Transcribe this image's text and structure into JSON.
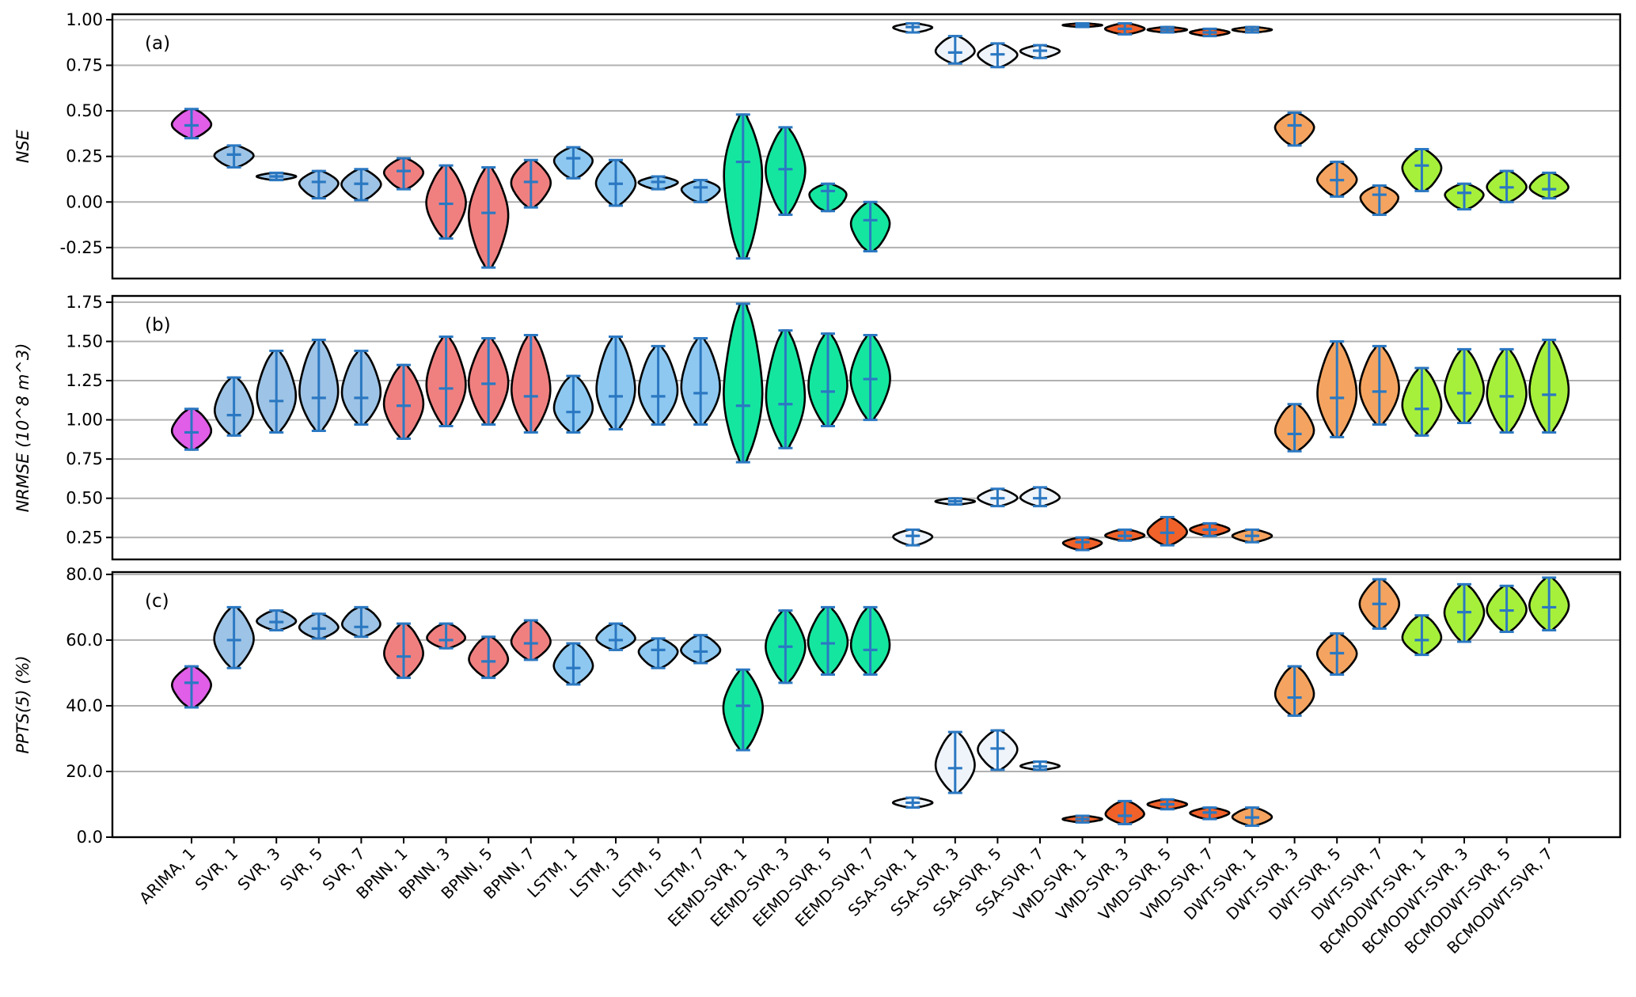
{
  "chart_data": {
    "type": "violin",
    "categories": [
      "ARIMA, 1",
      "SVR, 1",
      "SVR, 3",
      "SVR, 5",
      "SVR, 7",
      "BPNN, 1",
      "BPNN, 3",
      "BPNN, 5",
      "BPNN, 7",
      "LSTM, 1",
      "LSTM, 3",
      "LSTM, 5",
      "LSTM, 7",
      "EEMD-SVR, 1",
      "EEMD-SVR, 3",
      "EEMD-SVR, 5",
      "EEMD-SVR, 7",
      "SSA-SVR, 1",
      "SSA-SVR, 3",
      "SSA-SVR, 5",
      "SSA-SVR, 7",
      "VMD-SVR, 1",
      "VMD-SVR, 3",
      "VMD-SVR, 5",
      "VMD-SVR, 7",
      "DWT-SVR, 1",
      "DWT-SVR, 3",
      "DWT-SVR, 5",
      "DWT-SVR, 7",
      "BCMODWT-SVR, 1",
      "BCMODWT-SVR, 3",
      "BCMODWT-SVR, 5",
      "BCMODWT-SVR, 7"
    ],
    "colors": [
      "#e05ee8",
      "#9dc3e6",
      "#9dc3e6",
      "#9dc3e6",
      "#9dc3e6",
      "#f08080",
      "#f08080",
      "#f08080",
      "#f08080",
      "#8ec8f0",
      "#8ec8f0",
      "#8ec8f0",
      "#8ec8f0",
      "#14e6a0",
      "#14e6a0",
      "#14e6a0",
      "#14e6a0",
      "#eef4fa",
      "#eef4fa",
      "#eef4fa",
      "#eef4fa",
      "#f0622a",
      "#f0622a",
      "#f0622a",
      "#f0622a",
      "#f4a460",
      "#f4a460",
      "#f4a460",
      "#f4a460",
      "#a6f03c",
      "#a6f03c",
      "#a6f03c",
      "#a6f03c"
    ],
    "grid": "horizontal",
    "panels": [
      {
        "label": "(a)",
        "ylabel": "NSE",
        "ylim": [
          -0.42,
          1.03
        ],
        "yticks": [
          "1.00",
          "0.75",
          "0.50",
          "0.25",
          "0.00",
          "-0.25"
        ],
        "ytick_values": [
          1.0,
          0.75,
          0.5,
          0.25,
          0.0,
          -0.25
        ],
        "slots": [
          {
            "min": 0.35,
            "max": 0.51,
            "median": 0.42
          },
          {
            "min": 0.19,
            "max": 0.31,
            "median": 0.26
          },
          {
            "min": 0.12,
            "max": 0.16,
            "median": 0.14
          },
          {
            "min": 0.02,
            "max": 0.17,
            "median": 0.11
          },
          {
            "min": 0.01,
            "max": 0.18,
            "median": 0.1
          },
          {
            "min": 0.07,
            "max": 0.24,
            "median": 0.17
          },
          {
            "min": -0.2,
            "max": 0.2,
            "median": -0.01
          },
          {
            "min": -0.36,
            "max": 0.19,
            "median": -0.06
          },
          {
            "min": -0.03,
            "max": 0.23,
            "median": 0.11
          },
          {
            "min": 0.13,
            "max": 0.3,
            "median": 0.24
          },
          {
            "min": -0.02,
            "max": 0.23,
            "median": 0.1
          },
          {
            "min": 0.07,
            "max": 0.14,
            "median": 0.11
          },
          {
            "min": 0.0,
            "max": 0.12,
            "median": 0.08
          },
          {
            "min": -0.31,
            "max": 0.48,
            "median": 0.22
          },
          {
            "min": -0.07,
            "max": 0.41,
            "median": 0.18
          },
          {
            "min": -0.05,
            "max": 0.1,
            "median": 0.06
          },
          {
            "min": -0.27,
            "max": 0.0,
            "median": -0.1
          },
          {
            "min": 0.93,
            "max": 0.98,
            "median": 0.96
          },
          {
            "min": 0.76,
            "max": 0.91,
            "median": 0.82
          },
          {
            "min": 0.74,
            "max": 0.87,
            "median": 0.81
          },
          {
            "min": 0.79,
            "max": 0.86,
            "median": 0.83
          },
          {
            "min": 0.96,
            "max": 0.98,
            "median": 0.97
          },
          {
            "min": 0.92,
            "max": 0.98,
            "median": 0.95
          },
          {
            "min": 0.93,
            "max": 0.96,
            "median": 0.945
          },
          {
            "min": 0.91,
            "max": 0.95,
            "median": 0.93
          },
          {
            "min": 0.93,
            "max": 0.96,
            "median": 0.945
          },
          {
            "min": 0.31,
            "max": 0.49,
            "median": 0.42
          },
          {
            "min": 0.03,
            "max": 0.22,
            "median": 0.12
          },
          {
            "min": -0.07,
            "max": 0.09,
            "median": 0.04
          },
          {
            "min": 0.06,
            "max": 0.29,
            "median": 0.2
          },
          {
            "min": -0.04,
            "max": 0.1,
            "median": 0.05
          },
          {
            "min": 0.0,
            "max": 0.17,
            "median": 0.08
          },
          {
            "min": 0.02,
            "max": 0.16,
            "median": 0.07
          }
        ]
      },
      {
        "label": "(b)",
        "ylabel": "NRMSE (10^8 m^3)",
        "ylim": [
          0.11,
          1.79
        ],
        "yticks": [
          "1.75",
          "1.50",
          "1.25",
          "1.00",
          "0.75",
          "0.50",
          "0.25"
        ],
        "ytick_values": [
          1.75,
          1.5,
          1.25,
          1.0,
          0.75,
          0.5,
          0.25
        ],
        "slots": [
          {
            "min": 0.81,
            "max": 1.07,
            "median": 0.92
          },
          {
            "min": 0.9,
            "max": 1.27,
            "median": 1.03
          },
          {
            "min": 0.92,
            "max": 1.44,
            "median": 1.12
          },
          {
            "min": 0.93,
            "max": 1.51,
            "median": 1.14
          },
          {
            "min": 0.97,
            "max": 1.44,
            "median": 1.14
          },
          {
            "min": 0.88,
            "max": 1.35,
            "median": 1.09
          },
          {
            "min": 0.96,
            "max": 1.53,
            "median": 1.2
          },
          {
            "min": 0.97,
            "max": 1.52,
            "median": 1.23
          },
          {
            "min": 0.92,
            "max": 1.54,
            "median": 1.15
          },
          {
            "min": 0.92,
            "max": 1.28,
            "median": 1.05
          },
          {
            "min": 0.94,
            "max": 1.53,
            "median": 1.15
          },
          {
            "min": 0.97,
            "max": 1.47,
            "median": 1.15
          },
          {
            "min": 0.97,
            "max": 1.52,
            "median": 1.17
          },
          {
            "min": 0.73,
            "max": 1.74,
            "median": 1.09
          },
          {
            "min": 0.82,
            "max": 1.57,
            "median": 1.1
          },
          {
            "min": 0.96,
            "max": 1.55,
            "median": 1.18
          },
          {
            "min": 1.0,
            "max": 1.54,
            "median": 1.26
          },
          {
            "min": 0.2,
            "max": 0.3,
            "median": 0.26
          },
          {
            "min": 0.46,
            "max": 0.5,
            "median": 0.48
          },
          {
            "min": 0.45,
            "max": 0.56,
            "median": 0.5
          },
          {
            "min": 0.45,
            "max": 0.57,
            "median": 0.5
          },
          {
            "min": 0.17,
            "max": 0.25,
            "median": 0.22
          },
          {
            "min": 0.23,
            "max": 0.3,
            "median": 0.26
          },
          {
            "min": 0.2,
            "max": 0.38,
            "median": 0.28
          },
          {
            "min": 0.26,
            "max": 0.34,
            "median": 0.3
          },
          {
            "min": 0.22,
            "max": 0.3,
            "median": 0.26
          },
          {
            "min": 0.8,
            "max": 1.1,
            "median": 0.91
          },
          {
            "min": 0.89,
            "max": 1.5,
            "median": 1.14
          },
          {
            "min": 0.97,
            "max": 1.47,
            "median": 1.18
          },
          {
            "min": 0.9,
            "max": 1.33,
            "median": 1.07
          },
          {
            "min": 0.98,
            "max": 1.45,
            "median": 1.17
          },
          {
            "min": 0.92,
            "max": 1.45,
            "median": 1.15
          },
          {
            "min": 0.92,
            "max": 1.51,
            "median": 1.16
          }
        ]
      },
      {
        "label": "(c)",
        "ylabel": "PPTS(5) (%)",
        "ylim": [
          0.0,
          80.7
        ],
        "yticks": [
          "80.0",
          "60.0",
          "40.0",
          "20.0",
          "0.0"
        ],
        "ytick_values": [
          80,
          60,
          40,
          20,
          0
        ],
        "slots": [
          {
            "min": 39.5,
            "max": 52.0,
            "median": 47.0
          },
          {
            "min": 51.5,
            "max": 70.0,
            "median": 60.0
          },
          {
            "min": 63.0,
            "max": 69.0,
            "median": 65.5
          },
          {
            "min": 60.5,
            "max": 68.0,
            "median": 63.5
          },
          {
            "min": 61.0,
            "max": 70.0,
            "median": 64.0
          },
          {
            "min": 48.5,
            "max": 65.0,
            "median": 55.0
          },
          {
            "min": 57.5,
            "max": 65.0,
            "median": 60.0
          },
          {
            "min": 48.5,
            "max": 61.0,
            "median": 53.5
          },
          {
            "min": 54.0,
            "max": 66.0,
            "median": 59.0
          },
          {
            "min": 46.5,
            "max": 59.0,
            "median": 51.5
          },
          {
            "min": 57.0,
            "max": 65.0,
            "median": 60.0
          },
          {
            "min": 51.5,
            "max": 60.5,
            "median": 57.0
          },
          {
            "min": 53.0,
            "max": 61.5,
            "median": 56.5
          },
          {
            "min": 26.5,
            "max": 51.0,
            "median": 40.0
          },
          {
            "min": 47.0,
            "max": 69.0,
            "median": 58.0
          },
          {
            "min": 49.5,
            "max": 70.0,
            "median": 59.0
          },
          {
            "min": 49.5,
            "max": 70.0,
            "median": 57.0
          },
          {
            "min": 9.0,
            "max": 12.0,
            "median": 10.5
          },
          {
            "min": 13.5,
            "max": 32.0,
            "median": 21.0
          },
          {
            "min": 20.5,
            "max": 32.5,
            "median": 27.0
          },
          {
            "min": 20.5,
            "max": 23.0,
            "median": 21.5
          },
          {
            "min": 4.5,
            "max": 6.5,
            "median": 5.5
          },
          {
            "min": 4.0,
            "max": 11.0,
            "median": 6.5
          },
          {
            "min": 8.5,
            "max": 11.5,
            "median": 10.0
          },
          {
            "min": 5.5,
            "max": 9.0,
            "median": 7.5
          },
          {
            "min": 3.5,
            "max": 9.0,
            "median": 6.0
          },
          {
            "min": 37.0,
            "max": 52.0,
            "median": 42.5
          },
          {
            "min": 49.5,
            "max": 62.0,
            "median": 56.0
          },
          {
            "min": 63.5,
            "max": 78.5,
            "median": 71.0
          },
          {
            "min": 55.5,
            "max": 67.5,
            "median": 60.0
          },
          {
            "min": 59.5,
            "max": 77.0,
            "median": 68.5
          },
          {
            "min": 62.5,
            "max": 76.5,
            "median": 69.0
          },
          {
            "min": 63.0,
            "max": 79.0,
            "median": 70.0
          }
        ]
      }
    ]
  }
}
